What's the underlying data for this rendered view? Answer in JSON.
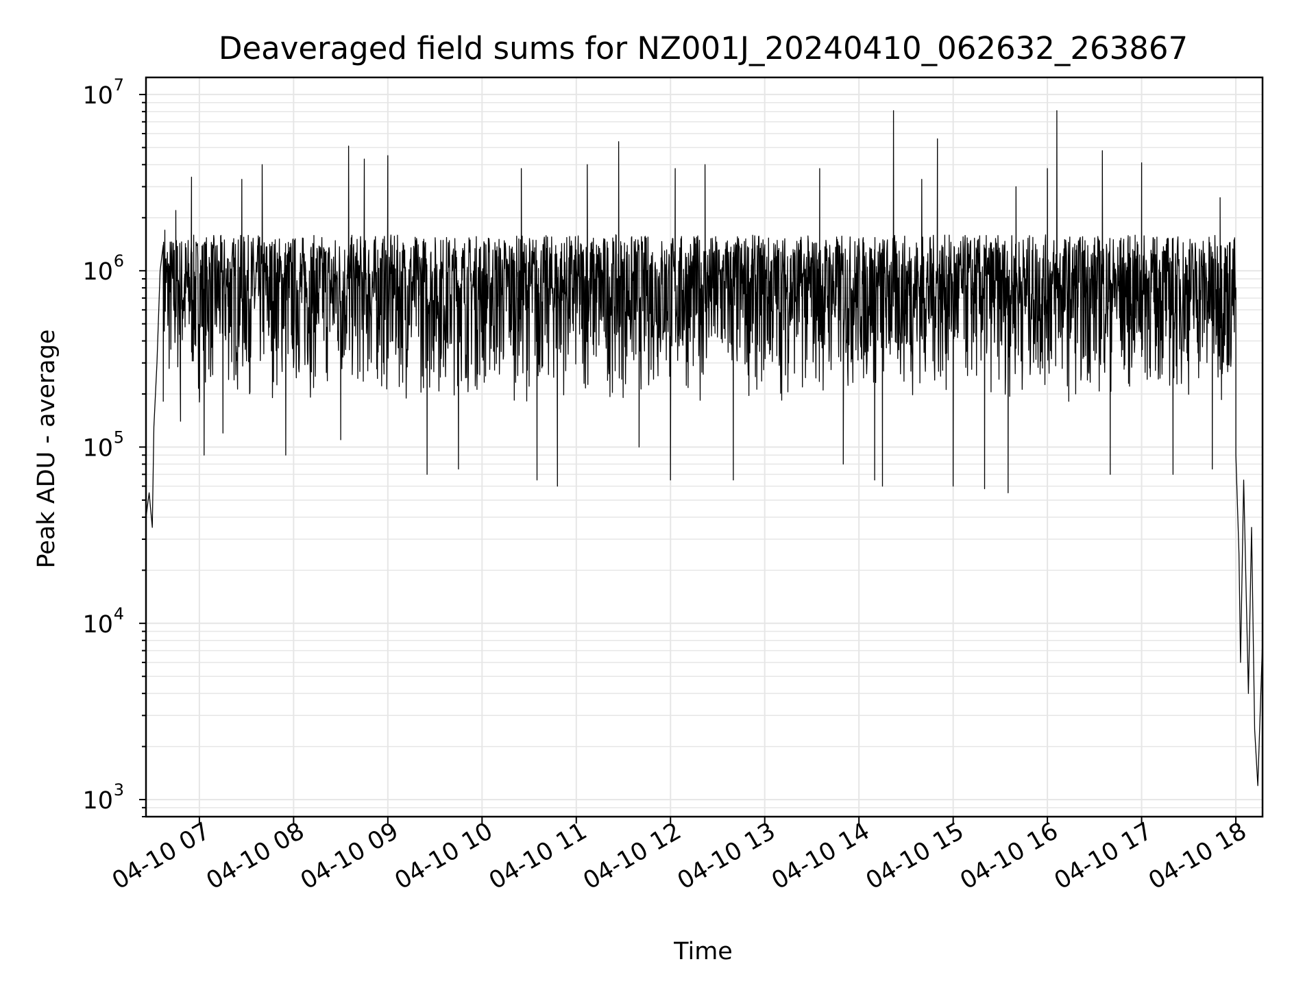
{
  "chart_data": {
    "type": "line",
    "title": "Deaveraged field sums for NZ001J_20240410_062632_263867",
    "xlabel": "Time",
    "ylabel": "Peak ADU - average",
    "yscale": "log",
    "ylim": [
      800,
      12500000
    ],
    "xlim": [
      "2024-04-10 06:26",
      "2024-04-10 18:17"
    ],
    "grid": true,
    "grid_minor": true,
    "x_ticks": [
      {
        "value": "2024-04-10 07:00",
        "label": "04-10 07"
      },
      {
        "value": "2024-04-10 08:00",
        "label": "04-10 08"
      },
      {
        "value": "2024-04-10 09:00",
        "label": "04-10 09"
      },
      {
        "value": "2024-04-10 10:00",
        "label": "04-10 10"
      },
      {
        "value": "2024-04-10 11:00",
        "label": "04-10 11"
      },
      {
        "value": "2024-04-10 12:00",
        "label": "04-10 12"
      },
      {
        "value": "2024-04-10 13:00",
        "label": "04-10 13"
      },
      {
        "value": "2024-04-10 14:00",
        "label": "04-10 14"
      },
      {
        "value": "2024-04-10 15:00",
        "label": "04-10 15"
      },
      {
        "value": "2024-04-10 16:00",
        "label": "04-10 16"
      },
      {
        "value": "2024-04-10 17:00",
        "label": "04-10 17"
      },
      {
        "value": "2024-04-10 18:00",
        "label": "04-10 18"
      }
    ],
    "y_ticks": [
      {
        "value": 1000,
        "base": "10",
        "exp": "3"
      },
      {
        "value": 10000,
        "base": "10",
        "exp": "4"
      },
      {
        "value": 100000,
        "base": "10",
        "exp": "5"
      },
      {
        "value": 1000000,
        "base": "10",
        "exp": "6"
      },
      {
        "value": 10000000,
        "base": "10",
        "exp": "7"
      }
    ],
    "line_color": "#000000",
    "grid_color": "#e6e6e6",
    "series_points": [
      [
        "2024-04-10 06:26",
        40000
      ],
      [
        "2024-04-10 06:28",
        55000
      ],
      [
        "2024-04-10 06:30",
        35000
      ],
      [
        "2024-04-10 06:31",
        130000
      ],
      [
        "2024-04-10 06:33",
        300000
      ],
      [
        "2024-04-10 06:35",
        1000000
      ],
      [
        "2024-04-10 06:37",
        1400000
      ],
      [
        "2024-04-10 06:38",
        1700000
      ],
      [
        "2024-04-10 06:40",
        600000
      ],
      [
        "2024-04-10 06:45",
        2200000
      ],
      [
        "2024-04-10 06:48",
        140000
      ],
      [
        "2024-04-10 06:55",
        3400000
      ],
      [
        "2024-04-10 07:00",
        180000
      ],
      [
        "2024-04-10 07:03",
        90000
      ],
      [
        "2024-04-10 07:15",
        120000
      ],
      [
        "2024-04-10 07:27",
        3300000
      ],
      [
        "2024-04-10 07:40",
        4000000
      ],
      [
        "2024-04-10 07:55",
        90000
      ],
      [
        "2024-04-10 08:30",
        110000
      ],
      [
        "2024-04-10 08:35",
        5100000
      ],
      [
        "2024-04-10 08:45",
        4300000
      ],
      [
        "2024-04-10 09:00",
        4500000
      ],
      [
        "2024-04-10 09:25",
        70000
      ],
      [
        "2024-04-10 09:45",
        75000
      ],
      [
        "2024-04-10 10:25",
        3800000
      ],
      [
        "2024-04-10 10:35",
        65000
      ],
      [
        "2024-04-10 10:48",
        60000
      ],
      [
        "2024-04-10 11:07",
        4000000
      ],
      [
        "2024-04-10 11:27",
        5400000
      ],
      [
        "2024-04-10 11:40",
        100000
      ],
      [
        "2024-04-10 12:00",
        65000
      ],
      [
        "2024-04-10 12:03",
        3800000
      ],
      [
        "2024-04-10 12:22",
        4000000
      ],
      [
        "2024-04-10 12:40",
        65000
      ],
      [
        "2024-04-10 13:35",
        3800000
      ],
      [
        "2024-04-10 13:50",
        80000
      ],
      [
        "2024-04-10 14:10",
        65000
      ],
      [
        "2024-04-10 14:15",
        60000
      ],
      [
        "2024-04-10 14:22",
        8100000
      ],
      [
        "2024-04-10 14:40",
        3300000
      ],
      [
        "2024-04-10 14:50",
        5600000
      ],
      [
        "2024-04-10 15:00",
        60000
      ],
      [
        "2024-04-10 15:20",
        58000
      ],
      [
        "2024-04-10 15:35",
        55000
      ],
      [
        "2024-04-10 15:40",
        3000000
      ],
      [
        "2024-04-10 16:00",
        3800000
      ],
      [
        "2024-04-10 16:06",
        8100000
      ],
      [
        "2024-04-10 16:35",
        4800000
      ],
      [
        "2024-04-10 16:40",
        70000
      ],
      [
        "2024-04-10 17:00",
        4100000
      ],
      [
        "2024-04-10 17:20",
        70000
      ],
      [
        "2024-04-10 17:45",
        75000
      ],
      [
        "2024-04-10 17:50",
        2600000
      ],
      [
        "2024-04-10 18:00",
        800000
      ],
      [
        "2024-04-10 18:00",
        90000
      ],
      [
        "2024-04-10 18:02",
        25000
      ],
      [
        "2024-04-10 18:03",
        6000
      ],
      [
        "2024-04-10 18:05",
        65000
      ],
      [
        "2024-04-10 18:08",
        4000
      ],
      [
        "2024-04-10 18:10",
        35000
      ],
      [
        "2024-04-10 18:12",
        2500
      ],
      [
        "2024-04-10 18:14",
        1200
      ],
      [
        "2024-04-10 18:17",
        8000
      ]
    ],
    "band_low": 180000,
    "band_high": 1600000
  }
}
